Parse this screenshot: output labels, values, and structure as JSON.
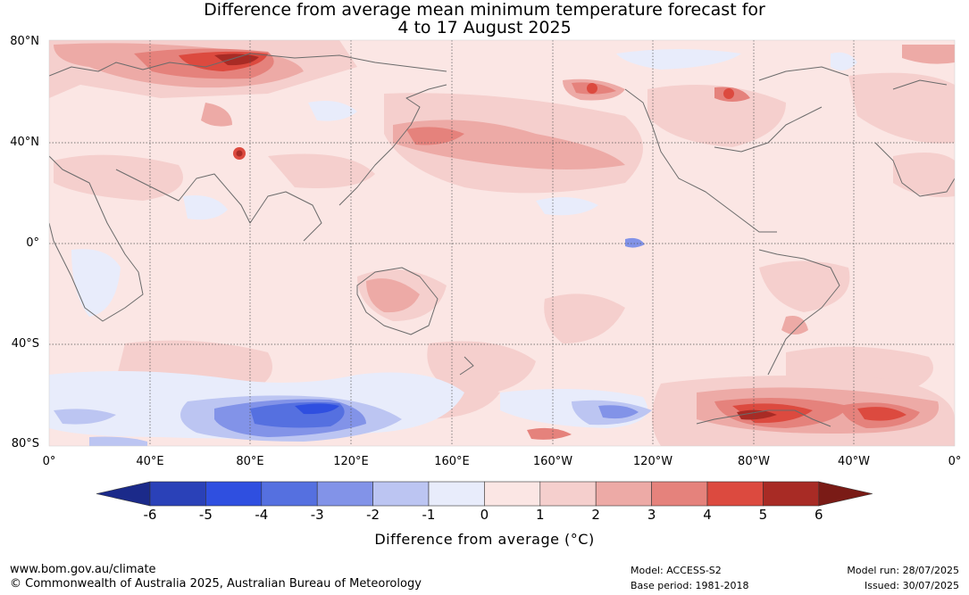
{
  "title": {
    "line1": "Difference from average mean minimum temperature forecast for",
    "line2": "4 to 17 August 2025"
  },
  "map": {
    "lat_labels": [
      "80°N",
      "40°N",
      "0°",
      "40°S",
      "80°S"
    ],
    "lon_labels": [
      "0°",
      "40°E",
      "80°E",
      "120°E",
      "160°E",
      "160°W",
      "120°W",
      "80°W",
      "40°W",
      "0°"
    ],
    "background_color": "#fbe6e4"
  },
  "colorbar": {
    "ticks": [
      "-6",
      "-5",
      "-4",
      "-3",
      "-2",
      "-1",
      "0",
      "1",
      "2",
      "3",
      "4",
      "5",
      "6"
    ],
    "colors": [
      "#1b2a8a",
      "#2a41b8",
      "#2f4fe0",
      "#5570e0",
      "#8293e8",
      "#bcc5f2",
      "#e8ecfb",
      "#fbe6e4",
      "#f5cfcd",
      "#edaaa6",
      "#e5827c",
      "#dc4a3f",
      "#a82b25",
      "#7a1b16"
    ],
    "label": "Difference from average (°C)"
  },
  "footer": {
    "website": "www.bom.gov.au/climate",
    "copyright": "© Commonwealth of Australia 2025, Australian Bureau of Meteorology",
    "model": "Model: ACCESS-S2",
    "base_period": "Base period: 1981-2018",
    "model_run": "Model run: 28/07/2025",
    "issued": "Issued: 30/07/2025"
  }
}
